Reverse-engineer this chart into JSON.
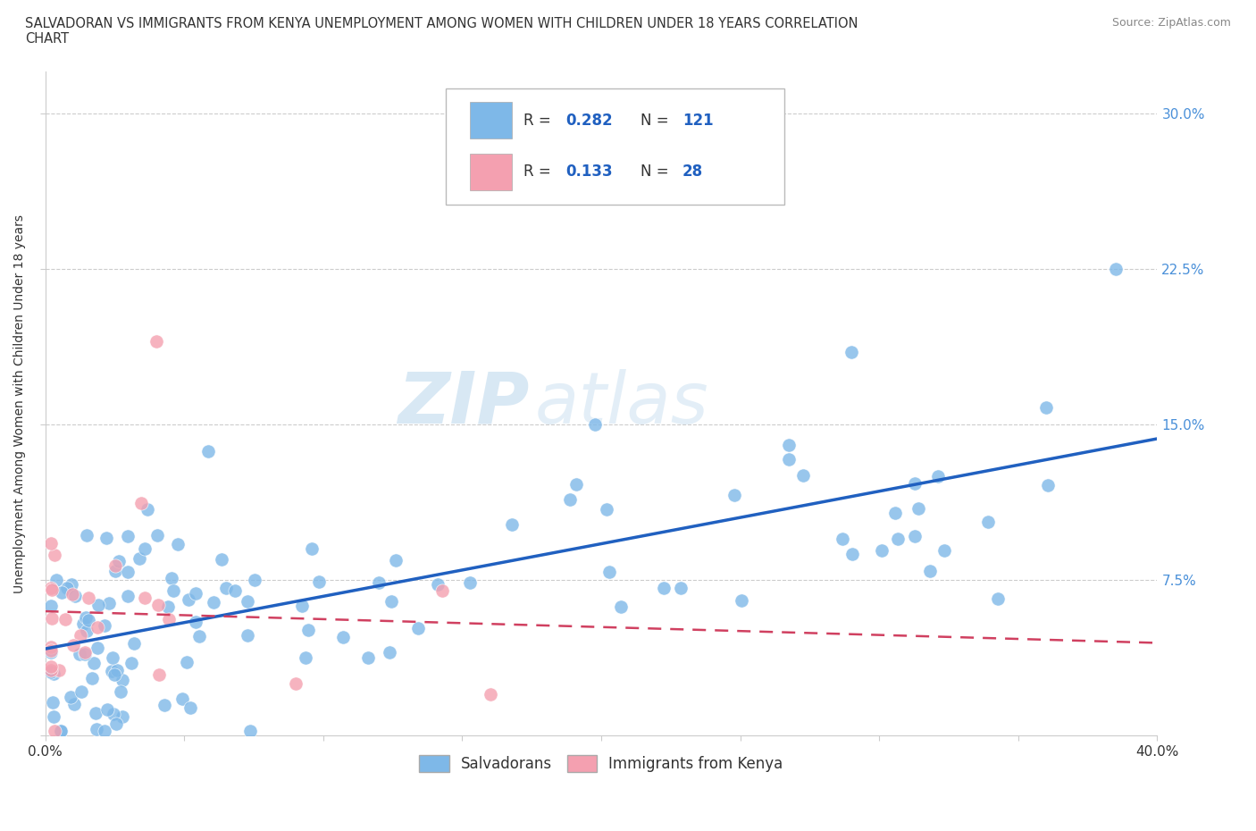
{
  "title": "SALVADORAN VS IMMIGRANTS FROM KENYA UNEMPLOYMENT AMONG WOMEN WITH CHILDREN UNDER 18 YEARS CORRELATION\nCHART",
  "source_text": "Source: ZipAtlas.com",
  "ylabel": "Unemployment Among Women with Children Under 18 years",
  "xlim": [
    0.0,
    0.4
  ],
  "ylim": [
    0.0,
    0.32
  ],
  "x_ticks": [
    0.0,
    0.05,
    0.1,
    0.15,
    0.2,
    0.25,
    0.3,
    0.35,
    0.4
  ],
  "y_ticks": [
    0.0,
    0.075,
    0.15,
    0.225,
    0.3
  ],
  "blue_color": "#7eb8e8",
  "pink_color": "#f4a0b0",
  "blue_line_color": "#2060c0",
  "pink_line_color": "#d04060",
  "R_blue": 0.282,
  "N_blue": 121,
  "R_pink": 0.133,
  "N_pink": 28,
  "legend1_label": "Salvadorans",
  "legend2_label": "Immigrants from Kenya",
  "watermark_zip": "ZIP",
  "watermark_atlas": "atlas",
  "background_color": "#ffffff",
  "grid_color": "#cccccc",
  "title_color": "#333333",
  "source_color": "#888888",
  "tick_color": "#4a90d9",
  "xlabel_color": "#333333"
}
